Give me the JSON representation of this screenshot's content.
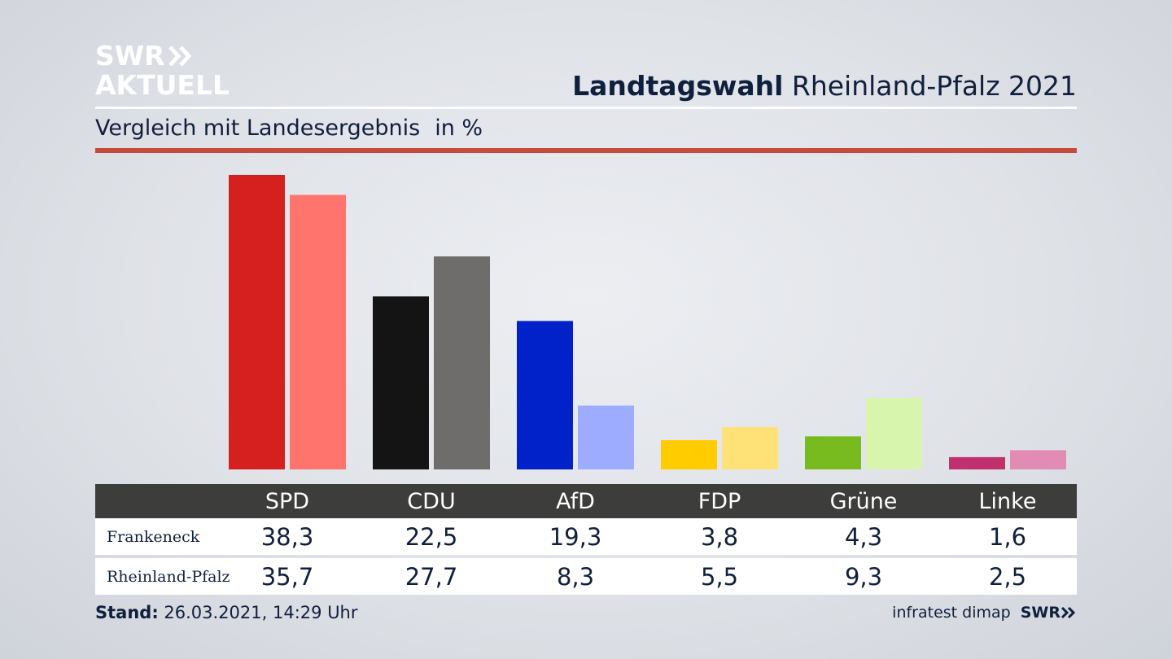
{
  "logo": {
    "line1": "SWR",
    "line2": "AKTUELL"
  },
  "header": {
    "title_bold": "Landtagswahl",
    "title_rest": "Rheinland-Pfalz 2021"
  },
  "subtitle": {
    "text": "Vergleich mit Landesergebnis",
    "unit": "in %"
  },
  "footer": {
    "stand_label": "Stand:",
    "stand_value": "26.03.2021, 14:29 Uhr",
    "source": "infratest dimap",
    "brand": "SWR"
  },
  "chart_data": {
    "type": "bar",
    "categories": [
      "SPD",
      "CDU",
      "AfD",
      "FDP",
      "Grüne",
      "Linke"
    ],
    "series": [
      {
        "name": "Frankeneck",
        "values": [
          38.3,
          22.5,
          19.3,
          3.8,
          4.3,
          1.6
        ],
        "display": [
          "38,3",
          "22,5",
          "19,3",
          "3,8",
          "4,3",
          "1,6"
        ]
      },
      {
        "name": "Rheinland-Pfalz",
        "values": [
          35.7,
          27.7,
          8.3,
          5.5,
          9.3,
          2.5
        ],
        "display": [
          "35,7",
          "27,7",
          "8,3",
          "5,5",
          "9,3",
          "2,5"
        ]
      }
    ],
    "colors": {
      "Frankeneck": [
        "#d61f1f",
        "#141414",
        "#0022c8",
        "#ffcc00",
        "#77bb1e",
        "#c0306e"
      ],
      "Rheinland-Pfalz": [
        "#ff756d",
        "#6e6d6b",
        "#9eacff",
        "#ffe277",
        "#d8f5ad",
        "#e28bb5"
      ]
    },
    "ylim": [
      0,
      38.3
    ],
    "grid": false,
    "legend": "table below chart"
  }
}
